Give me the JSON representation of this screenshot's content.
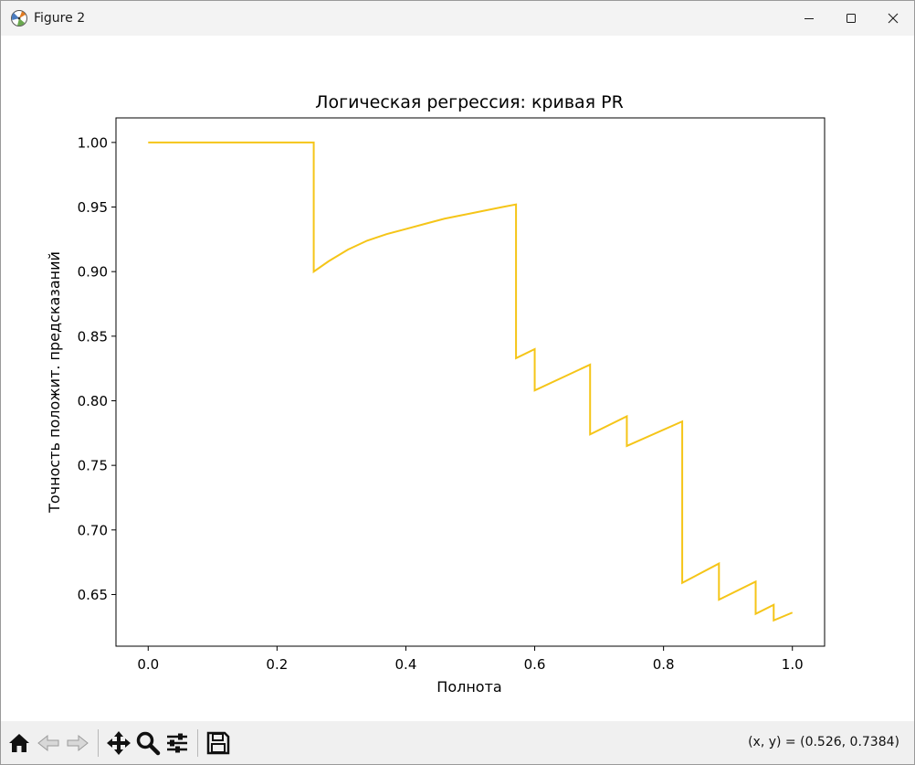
{
  "window": {
    "title": "Figure 2",
    "app_icon": "matplotlib-figure-icon",
    "controls": [
      "minimize-icon",
      "maximize-icon",
      "close-icon"
    ]
  },
  "toolbar": {
    "buttons": [
      "home-icon",
      "back-arrow-icon",
      "forward-arrow-icon",
      "pan-move-icon",
      "zoom-magnifier-icon",
      "configure-subplots-icon",
      "save-floppy-icon"
    ],
    "coords_text": "(x, y) = (0.526, 0.7384)"
  },
  "chart_data": {
    "type": "line",
    "title": "Логическая регрессия: кривая PR",
    "xlabel": "Полнота",
    "ylabel": "Точность положит. предсказаний",
    "xlim": [
      -0.05,
      1.05
    ],
    "ylim": [
      0.61,
      1.019
    ],
    "xticks": [
      0.0,
      0.2,
      0.4,
      0.6,
      0.8,
      1.0
    ],
    "xtick_labels": [
      "0.0",
      "0.2",
      "0.4",
      "0.6",
      "0.8",
      "1.0"
    ],
    "yticks": [
      0.65,
      0.7,
      0.75,
      0.8,
      0.85,
      0.9,
      0.95,
      1.0
    ],
    "ytick_labels": [
      "0.65",
      "0.70",
      "0.75",
      "0.80",
      "0.85",
      "0.90",
      "0.95",
      "1.00"
    ],
    "grid": false,
    "color": "#f5c518",
    "series": [
      {
        "x": [
          0.0,
          0.257,
          0.257,
          0.28,
          0.31,
          0.34,
          0.37,
          0.4,
          0.43,
          0.46,
          0.49,
          0.52,
          0.55,
          0.571,
          0.571,
          0.6,
          0.6,
          0.686,
          0.686,
          0.743,
          0.743,
          0.829,
          0.829,
          0.886,
          0.886,
          0.943,
          0.943,
          0.971,
          0.971,
          1.0
        ],
        "y": [
          1.0,
          1.0,
          0.9,
          0.908,
          0.917,
          0.924,
          0.929,
          0.933,
          0.937,
          0.941,
          0.944,
          0.947,
          0.95,
          0.952,
          0.833,
          0.84,
          0.808,
          0.828,
          0.774,
          0.788,
          0.765,
          0.784,
          0.659,
          0.674,
          0.646,
          0.66,
          0.635,
          0.642,
          0.63,
          0.636
        ]
      }
    ]
  }
}
